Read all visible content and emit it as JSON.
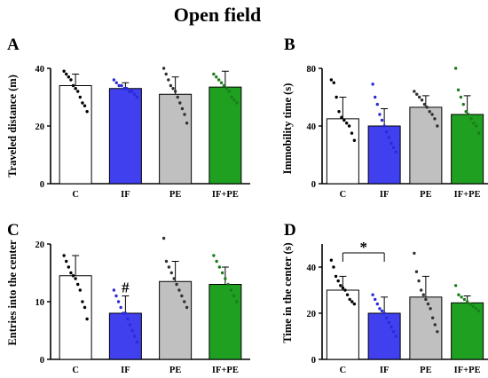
{
  "figure": {
    "title": "Open field"
  },
  "colors": {
    "C": "#ffffff",
    "IF": "#4040ee",
    "PE": "#c0c0c0",
    "IF+PE": "#20a020",
    "dots": {
      "C": "#000000",
      "IF": "#2a2ad8",
      "PE": "#303030",
      "IF+PE": "#1a7d1a"
    }
  },
  "chart_data": [
    {
      "type": "bar",
      "panel": "A",
      "categories": [
        "C",
        "IF",
        "PE",
        "IF+PE"
      ],
      "values": [
        34,
        33,
        31,
        33.5
      ],
      "errors": [
        4,
        2,
        6,
        5.5
      ],
      "ylabel": "Traveled distance (m)",
      "ylim": [
        0,
        40
      ],
      "yticks": [
        0,
        20,
        40
      ],
      "points": [
        [
          39,
          38,
          37,
          36,
          34,
          33,
          32,
          30,
          28,
          27,
          25
        ],
        [
          36,
          35,
          34,
          34,
          33,
          33,
          32,
          32,
          31,
          30
        ],
        [
          40,
          38,
          36,
          34,
          33,
          32,
          30,
          28,
          26,
          24,
          21
        ],
        [
          38,
          37,
          36,
          35,
          34,
          33,
          32,
          30,
          29,
          28
        ]
      ],
      "annotations": []
    },
    {
      "type": "bar",
      "panel": "B",
      "categories": [
        "C",
        "IF",
        "PE",
        "IF+PE"
      ],
      "values": [
        45,
        40,
        53,
        48
      ],
      "errors": [
        15,
        12,
        8,
        13
      ],
      "ylabel": "Immobility time (s)",
      "ylim": [
        0,
        80
      ],
      "yticks": [
        0,
        40,
        80
      ],
      "points": [
        [
          72,
          70,
          60,
          50,
          46,
          44,
          42,
          40,
          35,
          30
        ],
        [
          69,
          60,
          55,
          48,
          44,
          40,
          36,
          32,
          28,
          25,
          22
        ],
        [
          64,
          62,
          60,
          58,
          55,
          53,
          50,
          48,
          45,
          40
        ],
        [
          80,
          65,
          60,
          55,
          50,
          48,
          45,
          42,
          40,
          35
        ]
      ],
      "annotations": []
    },
    {
      "type": "bar",
      "panel": "C",
      "categories": [
        "C",
        "IF",
        "PE",
        "IF+PE"
      ],
      "values": [
        14.5,
        8,
        13.5,
        13
      ],
      "errors": [
        3.5,
        3,
        3.5,
        3
      ],
      "ylabel": "Entries into  the center",
      "ylim": [
        0,
        20
      ],
      "yticks": [
        0,
        10,
        20
      ],
      "points": [
        [
          18,
          17,
          16,
          15,
          14.5,
          14,
          13,
          12,
          10,
          9,
          7
        ],
        [
          12,
          11,
          10,
          9,
          8,
          8,
          7,
          6,
          5,
          4,
          3
        ],
        [
          21,
          17,
          16,
          15,
          14,
          13,
          12,
          11,
          10,
          9
        ],
        [
          18,
          17,
          16,
          15,
          14,
          13,
          12,
          11,
          10
        ]
      ],
      "annotations": [
        "#"
      ]
    },
    {
      "type": "bar",
      "panel": "D",
      "categories": [
        "C",
        "IF",
        "PE",
        "IF+PE"
      ],
      "values": [
        30,
        20,
        27,
        24.5
      ],
      "errors": [
        6,
        7,
        9,
        3
      ],
      "ylabel": "Time in the center (s)",
      "ylim": [
        0,
        50
      ],
      "yticks": [
        0,
        20,
        40
      ],
      "points": [
        [
          43,
          40,
          36,
          34,
          32,
          31,
          30,
          28,
          26,
          25,
          24
        ],
        [
          28,
          26,
          24,
          22,
          21,
          20,
          18,
          16,
          14,
          12,
          10
        ],
        [
          46,
          38,
          34,
          30,
          28,
          26,
          24,
          22,
          18,
          15,
          12
        ],
        [
          32,
          28,
          27,
          26,
          25,
          24,
          23,
          22,
          21
        ]
      ],
      "annotations": [
        "*"
      ]
    }
  ]
}
